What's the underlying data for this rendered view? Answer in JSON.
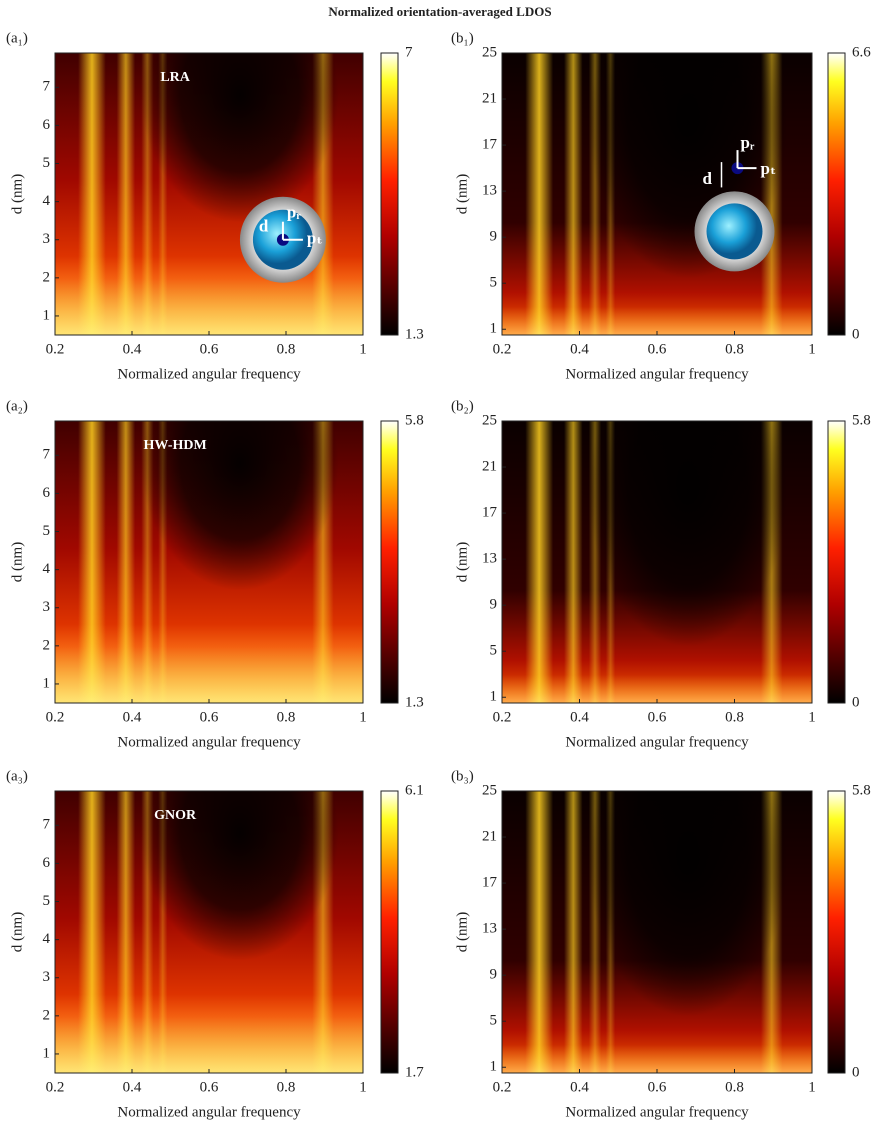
{
  "title": "Normalized orientation-averaged LDOS",
  "chart_data": [
    {
      "type": "heatmap",
      "panel_label": "(a₁)",
      "title": "LRA",
      "xlabel": "Normalized angular frequency",
      "ylabel": "d (nm)",
      "xlim": [
        0.2,
        1
      ],
      "xticks": [
        0.2,
        0.4,
        0.6,
        0.8,
        1
      ],
      "ylim": [
        0.5,
        7.9
      ],
      "yticks": [
        1,
        2,
        3,
        4,
        5,
        6,
        7
      ],
      "clim": [
        1.3,
        7
      ],
      "cticks": [
        1.3,
        7
      ],
      "colormap": "hot",
      "inset": {
        "d": "d",
        "p_r": "pᵣ",
        "p_t": "pₜ"
      }
    },
    {
      "type": "heatmap",
      "panel_label": "(b₁)",
      "xlabel": "Normalized angular frequency",
      "ylabel": "d (nm)",
      "xlim": [
        0.2,
        1
      ],
      "xticks": [
        0.2,
        0.4,
        0.6,
        0.8,
        1
      ],
      "ylim": [
        0.5,
        25
      ],
      "yticks": [
        1,
        5,
        9,
        13,
        17,
        21,
        25
      ],
      "clim": [
        0,
        6.6
      ],
      "cticks": [
        0,
        6.6
      ],
      "colormap": "hot",
      "inset": {
        "d": "d",
        "p_r": "pᵣ",
        "p_t": "pₜ"
      }
    },
    {
      "type": "heatmap",
      "panel_label": "(a₂)",
      "title": "HW-HDM",
      "xlabel": "Normalized angular frequency",
      "ylabel": "d (nm)",
      "xlim": [
        0.2,
        1
      ],
      "xticks": [
        0.2,
        0.4,
        0.6,
        0.8,
        1
      ],
      "ylim": [
        0.5,
        7.9
      ],
      "yticks": [
        1,
        2,
        3,
        4,
        5,
        6,
        7
      ],
      "clim": [
        1.3,
        5.8
      ],
      "cticks": [
        1.3,
        5.8
      ],
      "colormap": "hot"
    },
    {
      "type": "heatmap",
      "panel_label": "(b₂)",
      "xlabel": "Normalized angular frequency",
      "ylabel": "d (nm)",
      "xlim": [
        0.2,
        1
      ],
      "xticks": [
        0.2,
        0.4,
        0.6,
        0.8,
        1
      ],
      "ylim": [
        0.5,
        25
      ],
      "yticks": [
        1,
        5,
        9,
        13,
        17,
        21,
        25
      ],
      "clim": [
        0,
        5.8
      ],
      "cticks": [
        0,
        5.8
      ],
      "colormap": "hot"
    },
    {
      "type": "heatmap",
      "panel_label": "(a₃)",
      "title": "GNOR",
      "xlabel": "Normalized angular frequency",
      "ylabel": "d (nm)",
      "xlim": [
        0.2,
        1
      ],
      "xticks": [
        0.2,
        0.4,
        0.6,
        0.8,
        1
      ],
      "ylim": [
        0.5,
        7.9
      ],
      "yticks": [
        1,
        2,
        3,
        4,
        5,
        6,
        7
      ],
      "clim": [
        1.7,
        6.1
      ],
      "cticks": [
        1.7,
        6.1
      ],
      "colormap": "hot"
    },
    {
      "type": "heatmap",
      "panel_label": "(b₃)",
      "xlabel": "Normalized angular frequency",
      "ylabel": "d (nm)",
      "xlim": [
        0.2,
        1
      ],
      "xticks": [
        0.2,
        0.4,
        0.6,
        0.8,
        1
      ],
      "ylim": [
        0.5,
        25
      ],
      "yticks": [
        1,
        5,
        9,
        13,
        17,
        21,
        25
      ],
      "clim": [
        0,
        5.8
      ],
      "cticks": [
        0,
        5.8
      ],
      "colormap": "hot"
    }
  ]
}
